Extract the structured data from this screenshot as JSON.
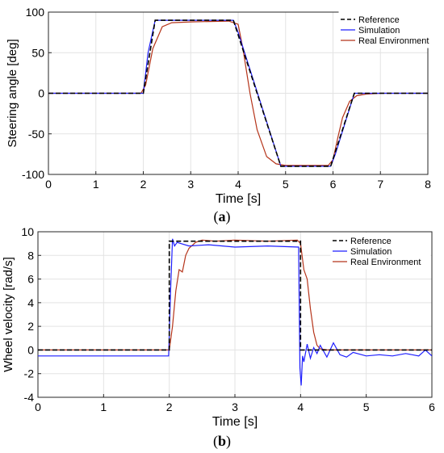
{
  "captions": {
    "a": "a",
    "b": "b"
  },
  "chart_data": [
    {
      "type": "line",
      "panel_label": "a",
      "xlabel": "Time [s]",
      "ylabel": "Steering angle [deg]",
      "xlim": [
        0,
        8
      ],
      "ylim": [
        -100,
        100
      ],
      "xticks": [
        0,
        1,
        2,
        3,
        4,
        5,
        6,
        7,
        8
      ],
      "yticks": [
        -100,
        -50,
        0,
        50,
        100
      ],
      "grid": true,
      "legend": "top-right",
      "series": [
        {
          "name": "Reference",
          "color": "#000000",
          "dash": "dashed",
          "x": [
            0,
            2.0,
            2.25,
            3.9,
            4.9,
            5.95,
            6.45,
            8
          ],
          "y": [
            0,
            0,
            90,
            90,
            -90,
            -90,
            0,
            0
          ]
        },
        {
          "name": "Simulation",
          "color": "#1f1fff",
          "dash": "solid",
          "x": [
            0,
            2.0,
            2.1,
            2.25,
            3.9,
            4.0,
            4.9,
            5.95,
            6.05,
            6.45,
            8
          ],
          "y": [
            0,
            0,
            50,
            90,
            90,
            75,
            -90,
            -90,
            -75,
            0,
            0
          ]
        },
        {
          "name": "Real Environment",
          "color": "#b5341a",
          "dash": "solid",
          "x": [
            0,
            1.95,
            2.05,
            2.2,
            2.4,
            2.6,
            3.0,
            3.8,
            4.0,
            4.1,
            4.25,
            4.4,
            4.6,
            4.8,
            5.0,
            5.9,
            6.0,
            6.1,
            6.2,
            6.35,
            6.5,
            6.7,
            7.0,
            8
          ],
          "y": [
            0,
            0,
            10,
            55,
            82,
            87,
            88,
            89,
            85,
            55,
            0,
            -45,
            -78,
            -87,
            -89,
            -89,
            -82,
            -55,
            -30,
            -10,
            -3,
            -1,
            0,
            0
          ]
        }
      ]
    },
    {
      "type": "line",
      "panel_label": "b",
      "xlabel": "Time [s]",
      "ylabel": "Wheel velocity [rad/s]",
      "xlim": [
        0,
        6
      ],
      "ylim": [
        -4,
        10
      ],
      "xticks": [
        0,
        1,
        2,
        3,
        4,
        5,
        6
      ],
      "yticks": [
        -4,
        -2,
        0,
        2,
        4,
        6,
        8,
        10
      ],
      "grid": true,
      "legend": "top-right",
      "series": [
        {
          "name": "Reference",
          "color": "#000000",
          "dash": "dashed",
          "x": [
            0,
            2.0,
            2.0,
            4.0,
            4.0,
            6
          ],
          "y": [
            0,
            0,
            9.2,
            9.2,
            0,
            0
          ]
        },
        {
          "name": "Simulation",
          "color": "#1f1fff",
          "dash": "solid",
          "x": [
            0,
            1.99,
            2.02,
            2.05,
            2.08,
            2.12,
            2.3,
            2.6,
            3.0,
            3.5,
            3.97,
            3.99,
            4.01,
            4.03,
            4.05,
            4.1,
            4.15,
            4.2,
            4.25,
            4.3,
            4.4,
            4.5,
            4.6,
            4.7,
            4.8,
            5.0,
            5.2,
            5.4,
            5.6,
            5.8,
            5.9,
            6
          ],
          "y": [
            -0.5,
            -0.5,
            5.0,
            9.4,
            8.8,
            9.1,
            8.8,
            8.9,
            8.7,
            8.8,
            8.7,
            -1.5,
            -3.0,
            -0.5,
            -1.0,
            0.5,
            -0.7,
            0.2,
            -0.3,
            0.4,
            -0.6,
            0.6,
            -0.4,
            -0.6,
            -0.2,
            -0.5,
            -0.4,
            -0.5,
            -0.3,
            -0.5,
            0.0,
            -0.5
          ]
        },
        {
          "name": "Real Environment",
          "color": "#b5341a",
          "dash": "solid",
          "x": [
            0,
            2.0,
            2.05,
            2.1,
            2.15,
            2.2,
            2.25,
            2.3,
            2.4,
            2.5,
            2.7,
            3.0,
            3.5,
            3.95,
            4.0,
            4.05,
            4.1,
            4.15,
            4.2,
            4.25,
            4.3,
            4.4,
            6
          ],
          "y": [
            0,
            0,
            2.0,
            5.0,
            6.8,
            6.6,
            8.0,
            8.6,
            9.1,
            9.3,
            9.2,
            9.3,
            9.2,
            9.3,
            9.0,
            6.8,
            6.0,
            3.5,
            1.5,
            0.4,
            0.1,
            0.0,
            0.0
          ]
        }
      ]
    }
  ]
}
